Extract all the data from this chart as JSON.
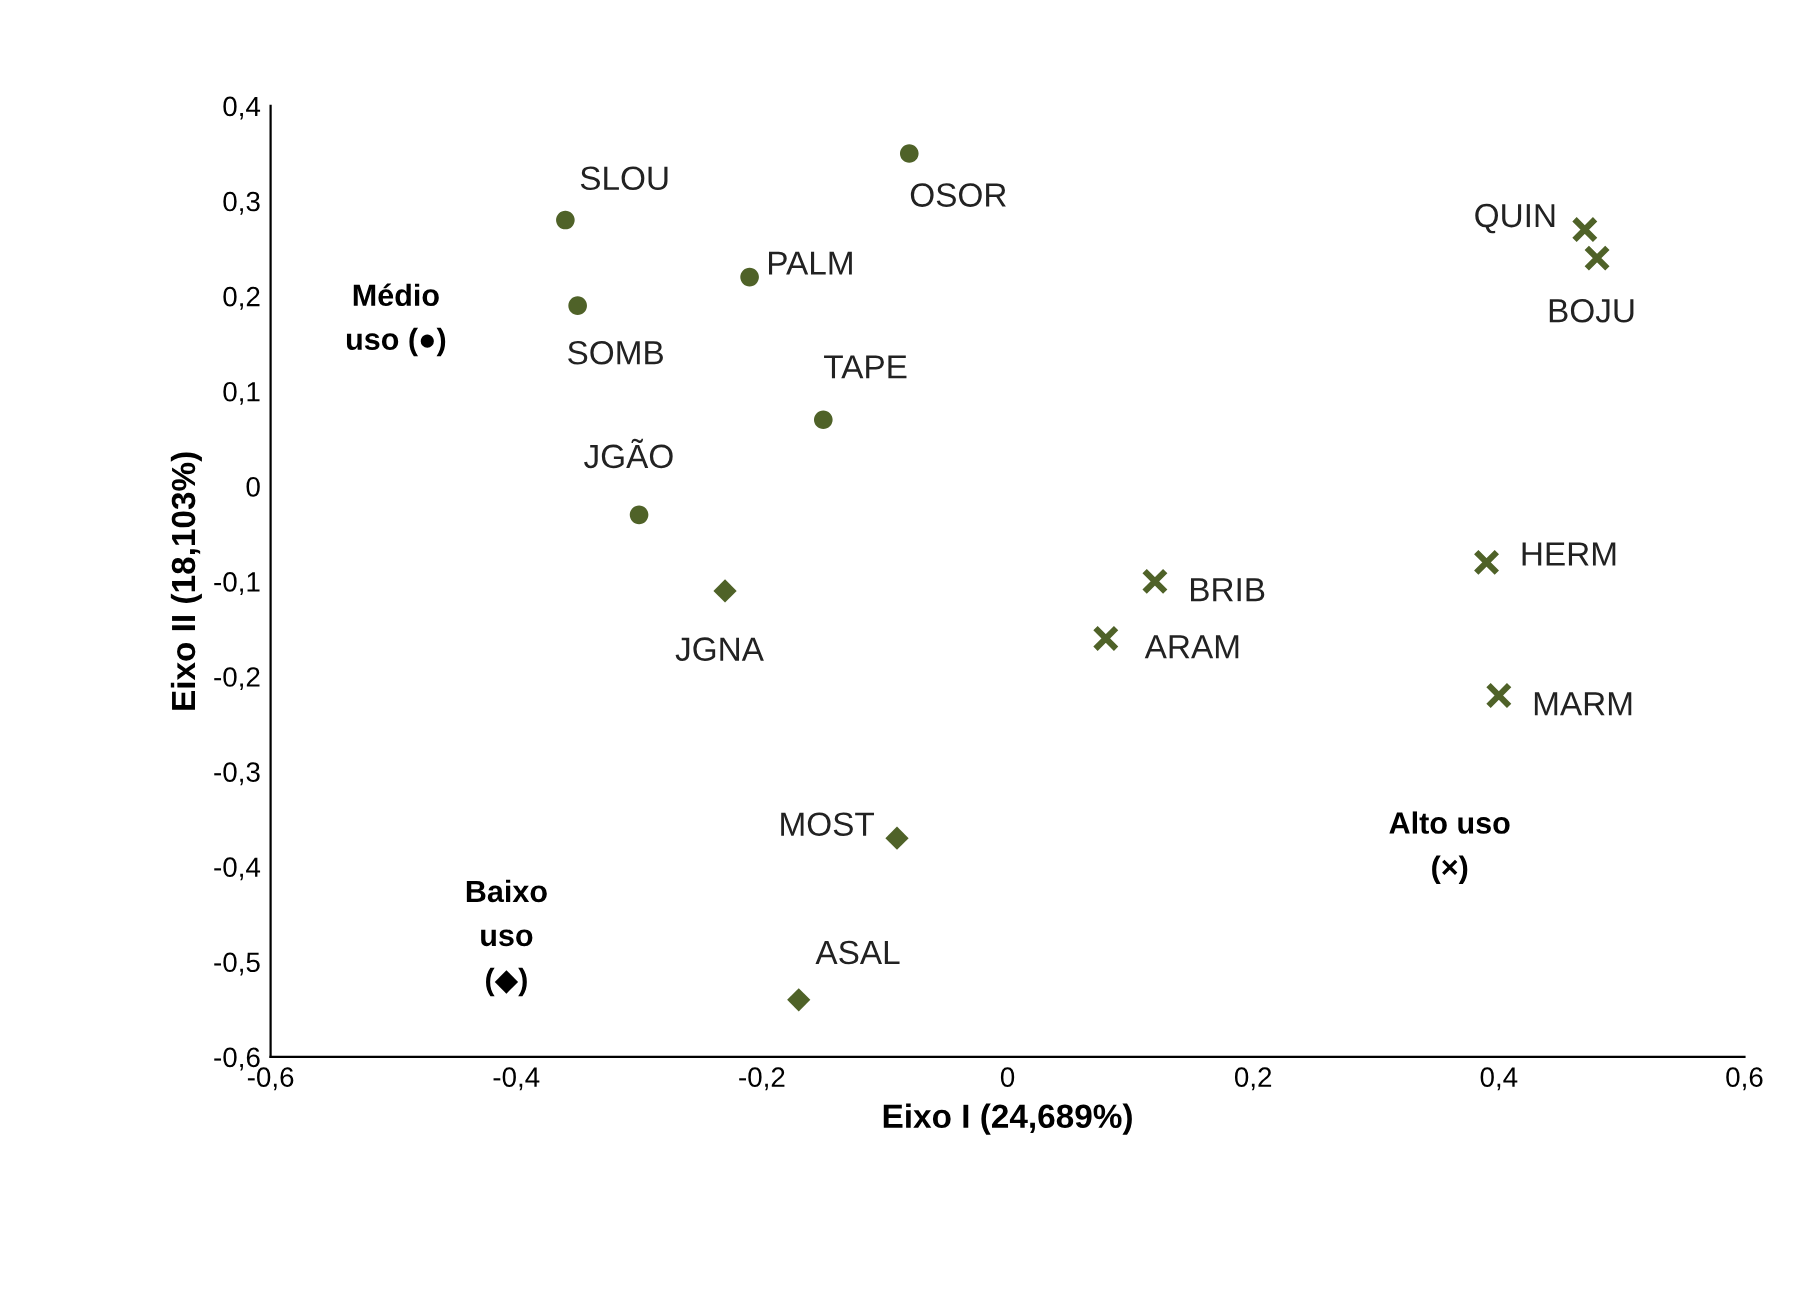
{
  "chart_data": {
    "type": "scatter",
    "xlabel": "Eixo I (24,689%)",
    "ylabel": "Eixo II (18,103%)",
    "xlim": [
      -0.6,
      0.6
    ],
    "ylim": [
      -0.6,
      0.4
    ],
    "xticks": [
      {
        "value": -0.6,
        "label": "-0,6"
      },
      {
        "value": -0.4,
        "label": "-0,4"
      },
      {
        "value": -0.2,
        "label": "-0,2"
      },
      0,
      {
        "value": 0.2,
        "label": "0,2"
      },
      {
        "value": 0.4,
        "label": "0,4"
      },
      {
        "value": 0.6,
        "label": "0,6"
      }
    ],
    "yticks": [
      {
        "value": -0.6,
        "label": "-0,6"
      },
      {
        "value": -0.5,
        "label": "-0,5"
      },
      {
        "value": -0.4,
        "label": "-0,4"
      },
      {
        "value": -0.3,
        "label": "-0,3"
      },
      {
        "value": -0.2,
        "label": "-0,2"
      },
      {
        "value": -0.1,
        "label": "-0,1"
      },
      0,
      {
        "value": 0.1,
        "label": "0,1"
      },
      {
        "value": 0.2,
        "label": "0,2"
      },
      {
        "value": 0.3,
        "label": "0,3"
      },
      {
        "value": 0.4,
        "label": "0,4"
      }
    ],
    "grid": false,
    "legend": false,
    "series": [
      {
        "color": "#4f6228",
        "marker": "circle",
        "x": [
          -0.36,
          -0.08,
          -0.21,
          -0.35,
          -0.15,
          -0.3
        ],
        "values": [
          0.28,
          0.35,
          0.22,
          0.19,
          0.07,
          -0.03
        ],
        "value_labels": [
          "SLOU",
          "OSOR",
          "PALM",
          "SOMB",
          "TAPE",
          "JGÃO"
        ]
      },
      {
        "color": "#4f6228",
        "marker": "diamond",
        "x": [
          -0.23,
          -0.09,
          -0.17
        ],
        "values": [
          -0.11,
          -0.37,
          -0.54
        ],
        "value_labels": [
          "JGNA",
          "MOST",
          "ASAL"
        ]
      },
      {
        "color": "#4f6228",
        "marker": "cross",
        "x": [
          0.47,
          0.48,
          0.12,
          0.08,
          0.39,
          0.4
        ],
        "values": [
          0.27,
          0.24,
          -0.1,
          -0.16,
          -0.08,
          -0.22
        ],
        "value_labels": [
          "QUIN",
          "BOJU",
          "BRIB",
          "ARAM",
          "HERM",
          "MARM"
        ]
      }
    ],
    "annotations": [
      "Médio\nuso (●)",
      "Baixo\nuso\n(◆)",
      "Alto uso\n(×)"
    ]
  }
}
